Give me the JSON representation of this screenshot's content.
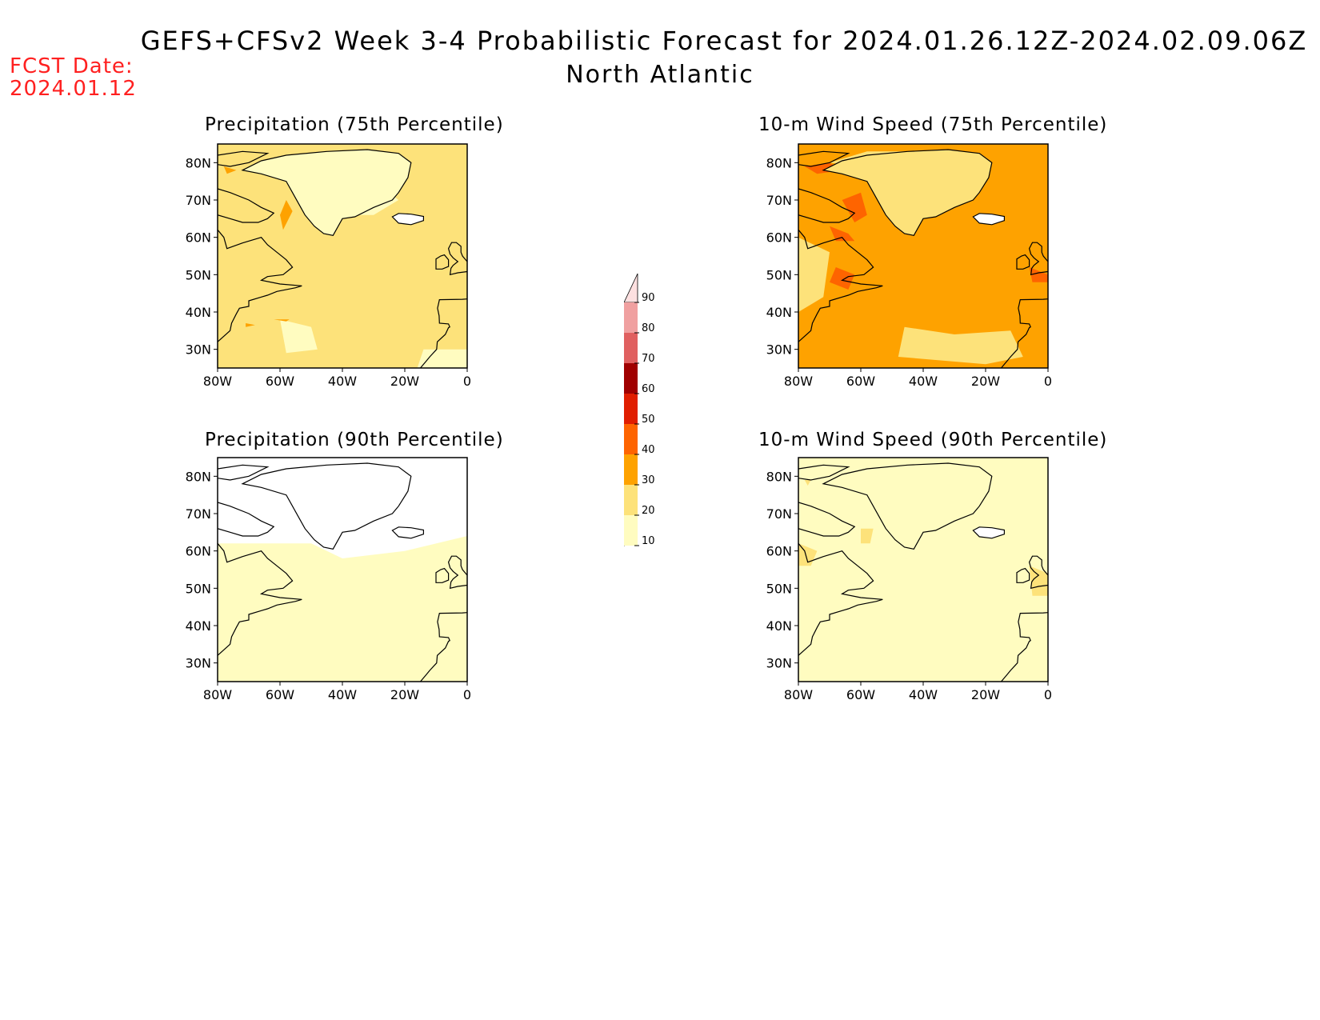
{
  "header": {
    "title": "GEFS+CFSv2 Week 3-4 Probabilistic Forecast for 2024.01.26.12Z-2024.02.09.06Z",
    "region": "North Atlantic",
    "fcst_label": "FCST Date:",
    "fcst_date": "2024.01.12"
  },
  "panels": [
    {
      "id": "precip-75",
      "title": "Precipitation (75th Percentile)",
      "base_level": 20,
      "hot_level": 30
    },
    {
      "id": "wind-75",
      "title": "10-m Wind Speed (75th Percentile)",
      "base_level": 30,
      "hot_level": 40
    },
    {
      "id": "precip-90",
      "title": "Precipitation (90th Percentile)",
      "base_level": 10,
      "hot_level": 20
    },
    {
      "id": "wind-90",
      "title": "10-m Wind Speed (90th Percentile)",
      "base_level": 10,
      "hot_level": 20
    }
  ],
  "axes": {
    "lat_ticks": [
      "80N",
      "70N",
      "60N",
      "50N",
      "40N",
      "30N"
    ],
    "lon_ticks": [
      "80W",
      "60W",
      "40W",
      "20W",
      "0"
    ]
  },
  "colorbar": {
    "levels": [
      10,
      20,
      30,
      40,
      50,
      60,
      70,
      80,
      90
    ],
    "level_labels": [
      "10",
      "20",
      "30",
      "40",
      "50",
      "60",
      "70",
      "80",
      "90"
    ],
    "colors": [
      "#fffcc0",
      "#fde27a",
      "#fea200",
      "#fe6400",
      "#e01e00",
      "#a00000",
      "#e06060",
      "#f0a0a0",
      "#fde0e0"
    ]
  }
}
